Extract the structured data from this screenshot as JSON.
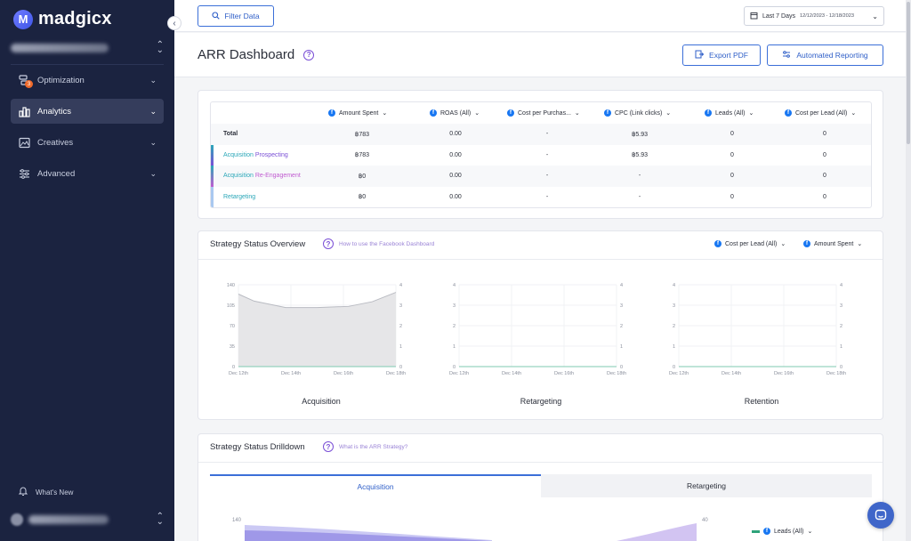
{
  "app": {
    "name": "madgicx",
    "logo_letter": "M"
  },
  "sidebar": {
    "items": [
      {
        "label": "Optimization",
        "icon": "optimization-icon",
        "badge": "3"
      },
      {
        "label": "Analytics",
        "icon": "analytics-icon",
        "active": true
      },
      {
        "label": "Creatives",
        "icon": "creatives-icon"
      },
      {
        "label": "Advanced",
        "icon": "advanced-icon"
      }
    ],
    "whats_new": "What's New"
  },
  "topbar": {
    "filter_label": "Filter Data",
    "date_label": "Last 7 Days",
    "date_range": "12/12/2023 - 12/18/2023"
  },
  "header": {
    "title": "ARR Dashboard",
    "export_label": "Export PDF",
    "reporting_label": "Automated Reporting"
  },
  "summary_table": {
    "columns": [
      "Amount Spent",
      "ROAS (All)",
      "Cost per Purchas...",
      "CPC (Link clicks)",
      "Leads (All)",
      "Cost per Lead (All)"
    ],
    "rows": [
      {
        "label": "Total",
        "values": [
          "฿783",
          "0.00",
          "-",
          "฿5.93",
          "0",
          "0"
        ]
      },
      {
        "label_a": "Acquisition",
        "label_b": "Prospecting",
        "values": [
          "฿783",
          "0.00",
          "-",
          "฿5.93",
          "0",
          "0"
        ]
      },
      {
        "label_a": "Acquisition",
        "label_b": "Re-Engagement",
        "values": [
          "฿0",
          "0.00",
          "-",
          "-",
          "0",
          "0"
        ]
      },
      {
        "label_a": "Retargeting",
        "values": [
          "฿0",
          "0.00",
          "-",
          "-",
          "0",
          "0"
        ]
      }
    ]
  },
  "overview": {
    "title": "Strategy Status Overview",
    "help_link": "How to use the Facebook Dashboard",
    "metric_left": "Cost per Lead (All)",
    "metric_right": "Amount Spent"
  },
  "drilldown": {
    "title": "Strategy Status Drilldown",
    "help_link": "What is the ARR Strategy?",
    "tabs": [
      "Acquisition",
      "Retargeting"
    ],
    "metric": "Leads (All)",
    "y_left_top": "140",
    "y_right_top": "40"
  },
  "colors": {
    "accent": "#3b6fd8",
    "purple": "#7a4fd6",
    "teal": "#2aa7b8",
    "sidebar": "#1b2340"
  },
  "chart_data": [
    {
      "type": "area",
      "title": "Acquisition",
      "x": [
        "Dec 12th",
        "Dec 14th",
        "Dec 16th",
        "Dec 18th"
      ],
      "y_left_ticks": [
        "0",
        "35",
        "70",
        "105",
        "140"
      ],
      "y_right_ticks": [
        "0",
        "1",
        "2",
        "3",
        "4"
      ],
      "ylim": [
        0,
        140
      ],
      "y2lim": [
        0,
        4
      ],
      "series": [
        {
          "axis": "left",
          "points": [
            [
              0,
              124
            ],
            [
              0.1,
              112
            ],
            [
              0.3,
              101
            ],
            [
              0.5,
              101
            ],
            [
              0.7,
              103
            ],
            [
              0.85,
              111
            ],
            [
              1,
              127
            ]
          ]
        },
        {
          "axis": "right",
          "points": [
            [
              0,
              0
            ],
            [
              1,
              0
            ]
          ]
        }
      ]
    },
    {
      "type": "area",
      "title": "Retargeting",
      "x": [
        "Dec 12th",
        "Dec 14th",
        "Dec 16th",
        "Dec 18th"
      ],
      "y_left_ticks": [
        "0",
        "1",
        "2",
        "3",
        "4"
      ],
      "y_right_ticks": [
        "0",
        "1",
        "2",
        "3",
        "4"
      ],
      "ylim": [
        0,
        4
      ],
      "y2lim": [
        0,
        4
      ],
      "series": [
        {
          "axis": "left",
          "points": [
            [
              0,
              0
            ],
            [
              1,
              0
            ]
          ]
        },
        {
          "axis": "right",
          "points": [
            [
              0,
              0
            ],
            [
              1,
              0
            ]
          ]
        }
      ]
    },
    {
      "type": "area",
      "title": "Retention",
      "x": [
        "Dec 12th",
        "Dec 14th",
        "Dec 16th",
        "Dec 18th"
      ],
      "y_left_ticks": [
        "0",
        "1",
        "2",
        "3",
        "4"
      ],
      "y_right_ticks": [
        "0",
        "1",
        "2",
        "3",
        "4"
      ],
      "ylim": [
        0,
        4
      ],
      "y2lim": [
        0,
        4
      ],
      "series": [
        {
          "axis": "left",
          "points": [
            [
              0,
              0
            ],
            [
              1,
              0
            ]
          ]
        },
        {
          "axis": "right",
          "points": [
            [
              0,
              0
            ],
            [
              1,
              0
            ]
          ]
        }
      ]
    }
  ]
}
